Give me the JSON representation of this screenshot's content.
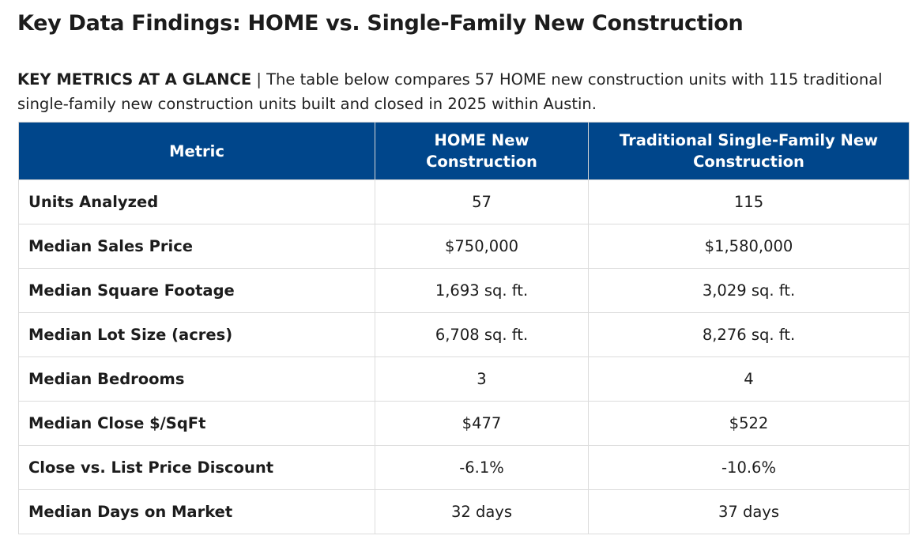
{
  "title": "Key Data Findings: HOME vs. Single-Family New Construction",
  "intro": {
    "lead": "KEY METRICS AT A GLANCE",
    "separator": " | ",
    "text": "The table below compares 57 HOME new construction units with 115 traditional single-family new construction units built and closed in 2025 within Austin."
  },
  "table": {
    "headers": [
      "Metric",
      "HOME New Construction",
      "Traditional Single-Family New Construction"
    ],
    "rows": [
      [
        "Units Analyzed",
        "57",
        "115"
      ],
      [
        "Median Sales Price",
        "$750,000",
        "$1,580,000"
      ],
      [
        "Median Square Footage",
        "1,693 sq. ft.",
        "3,029 sq. ft."
      ],
      [
        "Median Lot Size (acres)",
        "6,708 sq. ft.",
        "8,276 sq. ft."
      ],
      [
        "Median Bedrooms",
        "3",
        "4"
      ],
      [
        "Median Close $/SqFt",
        "$477",
        "$522"
      ],
      [
        "Close vs. List Price Discount",
        "-6.1%",
        "-10.6%"
      ],
      [
        "Median Days on Market",
        "32 days",
        "37 days"
      ]
    ]
  },
  "colors": {
    "header_background": "#00468b",
    "header_text": "#ffffff",
    "grid_border": "#dcdcdc"
  }
}
